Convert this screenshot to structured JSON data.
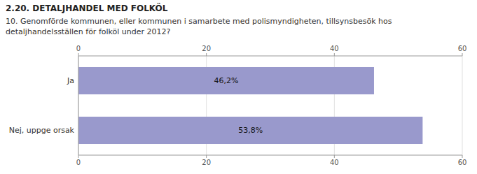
{
  "chart_data": {
    "type": "bar",
    "orientation": "horizontal",
    "title": "2.20. DETALJHANDEL MED FOLKÖL",
    "subtitle": "10. Genomförde kommunen, eller kommunen i samarbete med polismyndigheten, tillsynsbesök hos\ndetaljhandelsställen för folköl under 2012?",
    "categories": [
      "Ja",
      "Nej, uppge orsak"
    ],
    "values": [
      46.2,
      53.8
    ],
    "value_labels": [
      "46,2%",
      "53,8%"
    ],
    "data_labels": true,
    "color": "#9999cc",
    "xlim": [
      0,
      60
    ],
    "xticks": [
      0,
      20,
      40,
      60
    ],
    "grid": true
  }
}
